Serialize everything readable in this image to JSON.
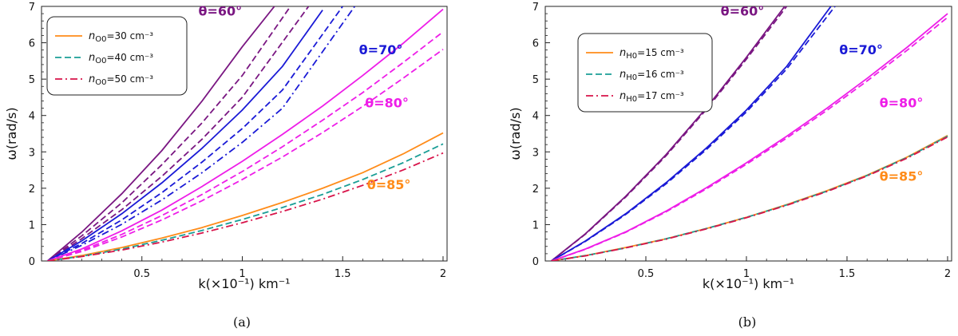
{
  "chart_data": [
    {
      "type": "line",
      "panel": "(a)",
      "xlabel": "k(×10⁻¹) km⁻¹",
      "ylabel": "ω(rad/s)",
      "xlim": [
        0,
        2.02
      ],
      "ylim": [
        0,
        7
      ],
      "xticks": [
        0.5,
        1,
        1.5,
        2
      ],
      "yticks": [
        0,
        1,
        2,
        3,
        4,
        5,
        6,
        7
      ],
      "grid": false,
      "legend_position": "top-left",
      "legend": [
        {
          "label": "n",
          "sub": "O0",
          "rest": "=30 cm⁻³",
          "style": "solid",
          "color": "#ff8c1a"
        },
        {
          "label": "n",
          "sub": "O0",
          "rest": "=40 cm⁻³",
          "style": "dashed",
          "color": "#1a9e96"
        },
        {
          "label": "n",
          "sub": "O0",
          "rest": "=50 cm⁻³",
          "style": "dashdot",
          "color": "#d8144a"
        }
      ],
      "annotations": [
        {
          "text": "θ=60°",
          "color": "#7a1782",
          "at": [
            0.89,
            6.75
          ]
        },
        {
          "text": "θ=70°",
          "color": "#1a1ad6",
          "at": [
            1.69,
            5.68
          ]
        },
        {
          "text": "θ=80°",
          "color": "#ee1ee8",
          "at": [
            1.72,
            4.22
          ]
        },
        {
          "text": "θ=85°",
          "color": "#ff8c1a",
          "at": [
            1.73,
            1.98
          ]
        }
      ],
      "series": [
        {
          "group": "θ=60°",
          "style": "solid",
          "color": "#7a1782",
          "x": [
            0.03,
            0.2,
            0.4,
            0.6,
            0.8,
            1.0,
            1.16
          ],
          "y": [
            0,
            0.79,
            1.85,
            3.04,
            4.4,
            5.89,
            7.0
          ]
        },
        {
          "group": "θ=60°",
          "style": "dashed",
          "color": "#7a1782",
          "x": [
            0.03,
            0.2,
            0.4,
            0.6,
            0.8,
            1.0,
            1.24
          ],
          "y": [
            0,
            0.69,
            1.6,
            2.65,
            3.8,
            5.1,
            7.0
          ]
        },
        {
          "group": "θ=60°",
          "style": "dashed",
          "color": "#7a1782",
          "x": [
            0.03,
            0.2,
            0.4,
            0.6,
            0.8,
            1.0,
            1.33
          ],
          "y": [
            0,
            0.61,
            1.41,
            2.33,
            3.35,
            4.5,
            7.0
          ]
        },
        {
          "group": "θ=70°",
          "style": "solid",
          "color": "#1a1ad6",
          "x": [
            0.03,
            0.2,
            0.4,
            0.6,
            0.8,
            1.0,
            1.2,
            1.4
          ],
          "y": [
            0,
            0.55,
            1.3,
            2.15,
            3.1,
            4.15,
            5.35,
            6.9
          ]
        },
        {
          "group": "θ=70°",
          "style": "dashed",
          "color": "#1a1ad6",
          "x": [
            0.03,
            0.2,
            0.4,
            0.6,
            0.8,
            1.0,
            1.2,
            1.5
          ],
          "y": [
            0,
            0.48,
            1.13,
            1.88,
            2.72,
            3.64,
            4.7,
            7.0
          ]
        },
        {
          "group": "θ=70°",
          "style": "dashdot",
          "color": "#1a1ad6",
          "x": [
            0.03,
            0.2,
            0.4,
            0.6,
            0.8,
            1.0,
            1.2,
            1.56
          ],
          "y": [
            0,
            0.43,
            1.01,
            1.68,
            2.43,
            3.26,
            4.2,
            7.0
          ]
        },
        {
          "group": "θ=80°",
          "style": "solid",
          "color": "#ee1ee8",
          "x": [
            0.03,
            0.2,
            0.4,
            0.6,
            0.8,
            1.0,
            1.2,
            1.4,
            1.6,
            1.8,
            2.0
          ],
          "y": [
            0,
            0.33,
            0.83,
            1.4,
            2.05,
            2.74,
            3.48,
            4.26,
            5.1,
            5.98,
            6.92
          ]
        },
        {
          "group": "θ=80°",
          "style": "dashed",
          "color": "#ee1ee8",
          "x": [
            0.03,
            0.2,
            0.4,
            0.6,
            0.8,
            1.0,
            1.2,
            1.4,
            1.6,
            1.8,
            2.0
          ],
          "y": [
            0,
            0.29,
            0.73,
            1.25,
            1.83,
            2.46,
            3.14,
            3.87,
            4.63,
            5.45,
            6.3
          ]
        },
        {
          "group": "θ=80°",
          "style": "dashed",
          "color": "#ee1ee8",
          "x": [
            0.03,
            0.2,
            0.4,
            0.6,
            0.8,
            1.0,
            1.2,
            1.4,
            1.6,
            1.8,
            2.0
          ],
          "y": [
            0,
            0.26,
            0.66,
            1.13,
            1.66,
            2.24,
            2.86,
            3.53,
            4.25,
            5.02,
            5.82
          ]
        },
        {
          "group": "θ=85°",
          "style": "solid",
          "color": "#ff8c1a",
          "x": [
            0.03,
            0.2,
            0.4,
            0.6,
            0.8,
            1.0,
            1.2,
            1.4,
            1.6,
            1.8,
            2.0
          ],
          "y": [
            0,
            0.15,
            0.37,
            0.63,
            0.92,
            1.25,
            1.61,
            2.0,
            2.43,
            2.94,
            3.52
          ]
        },
        {
          "group": "θ=85°",
          "style": "dashed",
          "color": "#1a9e96",
          "x": [
            0.03,
            0.2,
            0.4,
            0.6,
            0.8,
            1.0,
            1.2,
            1.4,
            1.6,
            1.8,
            2.0
          ],
          "y": [
            0,
            0.13,
            0.33,
            0.57,
            0.84,
            1.14,
            1.47,
            1.83,
            2.24,
            2.7,
            3.22
          ]
        },
        {
          "group": "θ=85°",
          "style": "dashdot",
          "color": "#d8144a",
          "x": [
            0.03,
            0.2,
            0.4,
            0.6,
            0.8,
            1.0,
            1.2,
            1.4,
            1.6,
            1.8,
            2.0
          ],
          "y": [
            0,
            0.12,
            0.3,
            0.52,
            0.77,
            1.05,
            1.36,
            1.7,
            2.08,
            2.5,
            2.97
          ]
        }
      ]
    },
    {
      "type": "line",
      "panel": "(b)",
      "xlabel": "k(×10⁻¹) km⁻¹",
      "ylabel": "ω(rad/s)",
      "xlim": [
        0,
        2.02
      ],
      "ylim": [
        0,
        7
      ],
      "xticks": [
        0.5,
        1,
        1.5,
        2
      ],
      "yticks": [
        0,
        1,
        2,
        3,
        4,
        5,
        6,
        7
      ],
      "grid": false,
      "legend_position": "top-left",
      "legend": [
        {
          "label": "n",
          "sub": "H0",
          "rest": "=15 cm⁻³",
          "style": "solid",
          "color": "#ff8c1a"
        },
        {
          "label": "n",
          "sub": "H0",
          "rest": "=16 cm⁻³",
          "style": "dashed",
          "color": "#1a9e96"
        },
        {
          "label": "n",
          "sub": "H0",
          "rest": "=17 cm⁻³",
          "style": "dashdot",
          "color": "#d8144a"
        }
      ],
      "annotations": [
        {
          "text": "θ=60°",
          "color": "#7a1782",
          "at": [
            0.98,
            6.75
          ]
        },
        {
          "text": "θ=70°",
          "color": "#1a1ad6",
          "at": [
            1.57,
            5.68
          ]
        },
        {
          "text": "θ=80°",
          "color": "#ee1ee8",
          "at": [
            1.77,
            4.22
          ]
        },
        {
          "text": "θ=85°",
          "color": "#ff8c1a",
          "at": [
            1.77,
            2.2
          ]
        }
      ],
      "series": [
        {
          "group": "θ=60°",
          "style": "solid",
          "color": "#7a1782",
          "x": [
            0.03,
            0.2,
            0.4,
            0.6,
            0.8,
            1.0,
            1.19
          ],
          "y": [
            0,
            0.75,
            1.78,
            2.92,
            4.2,
            5.6,
            7.0
          ]
        },
        {
          "group": "θ=60°",
          "style": "dashed",
          "color": "#7a1782",
          "x": [
            0.03,
            0.2,
            0.4,
            0.6,
            0.8,
            1.0,
            1.2
          ],
          "y": [
            0,
            0.74,
            1.76,
            2.89,
            4.16,
            5.55,
            7.0
          ]
        },
        {
          "group": "θ=70°",
          "style": "solid",
          "color": "#1a1ad6",
          "x": [
            0.03,
            0.2,
            0.4,
            0.6,
            0.8,
            1.0,
            1.2,
            1.42
          ],
          "y": [
            0,
            0.55,
            1.3,
            2.15,
            3.1,
            4.15,
            5.35,
            7.0
          ]
        },
        {
          "group": "θ=70°",
          "style": "dashed",
          "color": "#1a1ad6",
          "x": [
            0.03,
            0.2,
            0.4,
            0.6,
            0.8,
            1.0,
            1.2,
            1.44
          ],
          "y": [
            0,
            0.54,
            1.28,
            2.12,
            3.06,
            4.1,
            5.28,
            7.0
          ]
        },
        {
          "group": "θ=80°",
          "style": "solid",
          "color": "#ee1ee8",
          "x": [
            0.03,
            0.2,
            0.4,
            0.6,
            0.8,
            1.0,
            1.2,
            1.4,
            1.6,
            1.8,
            2.0
          ],
          "y": [
            0,
            0.33,
            0.8,
            1.37,
            2.01,
            2.7,
            3.43,
            4.2,
            5.02,
            5.88,
            6.8
          ]
        },
        {
          "group": "θ=80°",
          "style": "dashed",
          "color": "#ee1ee8",
          "x": [
            0.03,
            0.2,
            0.4,
            0.6,
            0.8,
            1.0,
            1.2,
            1.4,
            1.6,
            1.8,
            2.0
          ],
          "y": [
            0,
            0.32,
            0.79,
            1.35,
            1.98,
            2.66,
            3.38,
            4.14,
            4.95,
            5.8,
            6.7
          ]
        },
        {
          "group": "θ=85°",
          "style": "solid",
          "color": "#ff8c1a",
          "x": [
            0.03,
            0.2,
            0.4,
            0.6,
            0.8,
            1.0,
            1.2,
            1.4,
            1.6,
            1.8,
            2.0
          ],
          "y": [
            0,
            0.15,
            0.37,
            0.61,
            0.89,
            1.2,
            1.55,
            1.93,
            2.36,
            2.86,
            3.45
          ]
        },
        {
          "group": "θ=85°",
          "style": "dashed",
          "color": "#1a9e96",
          "x": [
            0.03,
            0.2,
            0.4,
            0.6,
            0.8,
            1.0,
            1.2,
            1.4,
            1.6,
            1.8,
            2.0
          ],
          "y": [
            0,
            0.15,
            0.36,
            0.61,
            0.89,
            1.2,
            1.54,
            1.92,
            2.35,
            2.85,
            3.43
          ]
        },
        {
          "group": "θ=85°",
          "style": "dashdot",
          "color": "#d8144a",
          "x": [
            0.03,
            0.2,
            0.4,
            0.6,
            0.8,
            1.0,
            1.2,
            1.4,
            1.6,
            1.8,
            2.0
          ],
          "y": [
            0,
            0.14,
            0.36,
            0.6,
            0.88,
            1.19,
            1.53,
            1.91,
            2.34,
            2.83,
            3.41
          ]
        }
      ]
    }
  ]
}
